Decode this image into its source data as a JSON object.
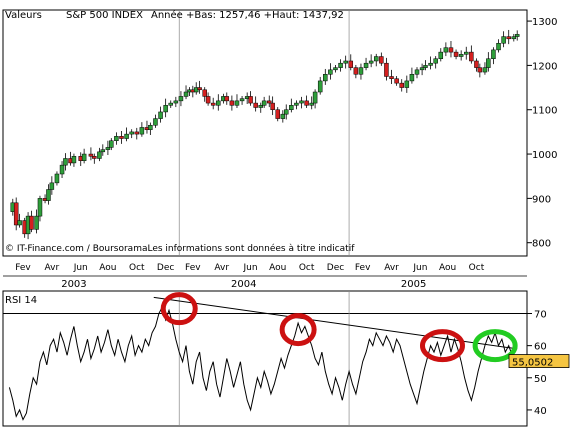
{
  "header": {
    "label": "Valeurs",
    "instrument": "S&P 500 INDEX",
    "stats": "Année +Bas: 1257,46 +Haut: 1437,92"
  },
  "copyright": "© IT-Finance.com / BoursoramaLes informations sont données à titre indicatif",
  "colors": {
    "up": "#2e9e3a",
    "down": "#d42020",
    "rsi_badge": "#f5c542",
    "circle_red": "#cc1111",
    "circle_green": "#22cc22"
  },
  "price_chart": {
    "type": "candlestick",
    "y_ticks": [
      800,
      900,
      1000,
      1100,
      1200,
      1300
    ],
    "ylim": [
      770,
      1325
    ],
    "points": [
      [
        2003.0,
        870
      ],
      [
        2003.02,
        890
      ],
      [
        2003.04,
        840
      ],
      [
        2003.06,
        850
      ],
      [
        2003.09,
        820
      ],
      [
        2003.11,
        860
      ],
      [
        2003.13,
        830
      ],
      [
        2003.16,
        860
      ],
      [
        2003.18,
        900
      ],
      [
        2003.21,
        895
      ],
      [
        2003.23,
        920
      ],
      [
        2003.25,
        935
      ],
      [
        2003.28,
        955
      ],
      [
        2003.31,
        975
      ],
      [
        2003.33,
        990
      ],
      [
        2003.36,
        980
      ],
      [
        2003.38,
        995
      ],
      [
        2003.42,
        985
      ],
      [
        2003.44,
        1000
      ],
      [
        2003.48,
        995
      ],
      [
        2003.5,
        990
      ],
      [
        2003.53,
        1005
      ],
      [
        2003.55,
        1010
      ],
      [
        2003.58,
        1015
      ],
      [
        2003.6,
        1030
      ],
      [
        2003.63,
        1040
      ],
      [
        2003.66,
        1035
      ],
      [
        2003.69,
        1045
      ],
      [
        2003.72,
        1050
      ],
      [
        2003.75,
        1045
      ],
      [
        2003.78,
        1060
      ],
      [
        2003.81,
        1055
      ],
      [
        2003.83,
        1065
      ],
      [
        2003.86,
        1080
      ],
      [
        2003.89,
        1095
      ],
      [
        2003.92,
        1110
      ],
      [
        2003.95,
        1115
      ],
      [
        2003.98,
        1120
      ],
      [
        2004.01,
        1130
      ],
      [
        2004.04,
        1140
      ],
      [
        2004.06,
        1145
      ],
      [
        2004.08,
        1140
      ],
      [
        2004.1,
        1150
      ],
      [
        2004.12,
        1145
      ],
      [
        2004.15,
        1130
      ],
      [
        2004.17,
        1115
      ],
      [
        2004.2,
        1110
      ],
      [
        2004.23,
        1120
      ],
      [
        2004.26,
        1130
      ],
      [
        2004.28,
        1120
      ],
      [
        2004.31,
        1110
      ],
      [
        2004.34,
        1120
      ],
      [
        2004.37,
        1125
      ],
      [
        2004.4,
        1130
      ],
      [
        2004.42,
        1115
      ],
      [
        2004.45,
        1105
      ],
      [
        2004.48,
        1110
      ],
      [
        2004.5,
        1120
      ],
      [
        2004.53,
        1115
      ],
      [
        2004.55,
        1100
      ],
      [
        2004.58,
        1080
      ],
      [
        2004.61,
        1090
      ],
      [
        2004.63,
        1100
      ],
      [
        2004.66,
        1110
      ],
      [
        2004.69,
        1115
      ],
      [
        2004.72,
        1120
      ],
      [
        2004.75,
        1110
      ],
      [
        2004.78,
        1115
      ],
      [
        2004.8,
        1140
      ],
      [
        2004.83,
        1165
      ],
      [
        2004.86,
        1180
      ],
      [
        2004.89,
        1190
      ],
      [
        2004.92,
        1195
      ],
      [
        2004.95,
        1205
      ],
      [
        2004.98,
        1210
      ],
      [
        2005.01,
        1195
      ],
      [
        2005.04,
        1180
      ],
      [
        2005.07,
        1195
      ],
      [
        2005.1,
        1205
      ],
      [
        2005.13,
        1210
      ],
      [
        2005.16,
        1220
      ],
      [
        2005.19,
        1205
      ],
      [
        2005.22,
        1175
      ],
      [
        2005.25,
        1170
      ],
      [
        2005.28,
        1160
      ],
      [
        2005.31,
        1150
      ],
      [
        2005.34,
        1165
      ],
      [
        2005.37,
        1180
      ],
      [
        2005.4,
        1190
      ],
      [
        2005.43,
        1195
      ],
      [
        2005.45,
        1200
      ],
      [
        2005.48,
        1205
      ],
      [
        2005.51,
        1215
      ],
      [
        2005.54,
        1230
      ],
      [
        2005.57,
        1240
      ],
      [
        2005.6,
        1230
      ],
      [
        2005.63,
        1220
      ],
      [
        2005.66,
        1225
      ],
      [
        2005.69,
        1230
      ],
      [
        2005.72,
        1210
      ],
      [
        2005.75,
        1195
      ],
      [
        2005.77,
        1185
      ],
      [
        2005.8,
        1195
      ],
      [
        2005.82,
        1215
      ],
      [
        2005.85,
        1235
      ],
      [
        2005.88,
        1250
      ],
      [
        2005.91,
        1265
      ],
      [
        2005.94,
        1260
      ],
      [
        2005.97,
        1265
      ],
      [
        2005.99,
        1270
      ]
    ]
  },
  "x_axis": {
    "months": [
      {
        "label": "Fev",
        "t": 2003.08
      },
      {
        "label": "Avr",
        "t": 2003.25
      },
      {
        "label": "Jun",
        "t": 2003.42
      },
      {
        "label": "Aou",
        "t": 2003.58
      },
      {
        "label": "Oct",
        "t": 2003.75
      },
      {
        "label": "Dec",
        "t": 2003.92
      },
      {
        "label": "Fev",
        "t": 2004.08
      },
      {
        "label": "Avr",
        "t": 2004.25
      },
      {
        "label": "Jun",
        "t": 2004.42
      },
      {
        "label": "Aou",
        "t": 2004.58
      },
      {
        "label": "Oct",
        "t": 2004.75
      },
      {
        "label": "Dec",
        "t": 2004.92
      },
      {
        "label": "Fev",
        "t": 2005.08
      },
      {
        "label": "Avr",
        "t": 2005.25
      },
      {
        "label": "Jun",
        "t": 2005.42
      },
      {
        "label": "Aou",
        "t": 2005.58
      },
      {
        "label": "Oct",
        "t": 2005.75
      }
    ],
    "years": [
      {
        "label": "2003",
        "t": 2003.38
      },
      {
        "label": "2004",
        "t": 2004.38
      },
      {
        "label": "2005",
        "t": 2005.38
      }
    ],
    "year_boundaries": [
      2004.0,
      2005.0
    ]
  },
  "rsi_chart": {
    "label": "RSI 14",
    "current_value": "55,0502",
    "y_ticks": [
      40,
      50,
      60,
      70
    ],
    "ylim": [
      35,
      77
    ],
    "overbought": 70,
    "points": [
      [
        2003.0,
        47
      ],
      [
        2003.02,
        43
      ],
      [
        2003.04,
        38
      ],
      [
        2003.06,
        40
      ],
      [
        2003.08,
        37
      ],
      [
        2003.1,
        39
      ],
      [
        2003.12,
        45
      ],
      [
        2003.14,
        50
      ],
      [
        2003.16,
        48
      ],
      [
        2003.18,
        55
      ],
      [
        2003.2,
        58
      ],
      [
        2003.22,
        54
      ],
      [
        2003.24,
        60
      ],
      [
        2003.26,
        62
      ],
      [
        2003.28,
        58
      ],
      [
        2003.3,
        64
      ],
      [
        2003.32,
        61
      ],
      [
        2003.34,
        57
      ],
      [
        2003.36,
        62
      ],
      [
        2003.38,
        66
      ],
      [
        2003.4,
        60
      ],
      [
        2003.42,
        55
      ],
      [
        2003.44,
        58
      ],
      [
        2003.46,
        62
      ],
      [
        2003.48,
        56
      ],
      [
        2003.5,
        59
      ],
      [
        2003.52,
        63
      ],
      [
        2003.54,
        58
      ],
      [
        2003.56,
        61
      ],
      [
        2003.58,
        65
      ],
      [
        2003.6,
        60
      ],
      [
        2003.62,
        57
      ],
      [
        2003.64,
        62
      ],
      [
        2003.66,
        58
      ],
      [
        2003.68,
        55
      ],
      [
        2003.7,
        60
      ],
      [
        2003.72,
        63
      ],
      [
        2003.74,
        57
      ],
      [
        2003.76,
        60
      ],
      [
        2003.78,
        58
      ],
      [
        2003.8,
        62
      ],
      [
        2003.82,
        60
      ],
      [
        2003.84,
        64
      ],
      [
        2003.86,
        66
      ],
      [
        2003.88,
        70
      ],
      [
        2003.9,
        72
      ],
      [
        2003.92,
        68
      ],
      [
        2003.94,
        71
      ],
      [
        2003.96,
        67
      ],
      [
        2003.98,
        62
      ],
      [
        2004.0,
        58
      ],
      [
        2004.02,
        55
      ],
      [
        2004.04,
        60
      ],
      [
        2004.06,
        52
      ],
      [
        2004.08,
        48
      ],
      [
        2004.1,
        55
      ],
      [
        2004.12,
        58
      ],
      [
        2004.14,
        50
      ],
      [
        2004.16,
        46
      ],
      [
        2004.18,
        52
      ],
      [
        2004.2,
        55
      ],
      [
        2004.22,
        48
      ],
      [
        2004.24,
        44
      ],
      [
        2004.26,
        50
      ],
      [
        2004.28,
        56
      ],
      [
        2004.3,
        52
      ],
      [
        2004.32,
        47
      ],
      [
        2004.34,
        51
      ],
      [
        2004.36,
        55
      ],
      [
        2004.38,
        48
      ],
      [
        2004.4,
        43
      ],
      [
        2004.42,
        40
      ],
      [
        2004.44,
        45
      ],
      [
        2004.46,
        50
      ],
      [
        2004.48,
        47
      ],
      [
        2004.5,
        52
      ],
      [
        2004.52,
        49
      ],
      [
        2004.54,
        45
      ],
      [
        2004.56,
        48
      ],
      [
        2004.58,
        52
      ],
      [
        2004.6,
        56
      ],
      [
        2004.62,
        53
      ],
      [
        2004.64,
        57
      ],
      [
        2004.66,
        60
      ],
      [
        2004.68,
        63
      ],
      [
        2004.7,
        67
      ],
      [
        2004.72,
        64
      ],
      [
        2004.74,
        66
      ],
      [
        2004.76,
        63
      ],
      [
        2004.78,
        60
      ],
      [
        2004.8,
        56
      ],
      [
        2004.82,
        54
      ],
      [
        2004.84,
        58
      ],
      [
        2004.86,
        52
      ],
      [
        2004.88,
        48
      ],
      [
        2004.9,
        45
      ],
      [
        2004.92,
        50
      ],
      [
        2004.94,
        47
      ],
      [
        2004.96,
        43
      ],
      [
        2004.98,
        48
      ],
      [
        2005.0,
        52
      ],
      [
        2005.02,
        48
      ],
      [
        2005.04,
        45
      ],
      [
        2005.06,
        50
      ],
      [
        2005.08,
        55
      ],
      [
        2005.1,
        58
      ],
      [
        2005.12,
        62
      ],
      [
        2005.14,
        60
      ],
      [
        2005.16,
        64
      ],
      [
        2005.18,
        62
      ],
      [
        2005.2,
        60
      ],
      [
        2005.22,
        63
      ],
      [
        2005.24,
        61
      ],
      [
        2005.26,
        58
      ],
      [
        2005.28,
        62
      ],
      [
        2005.3,
        60
      ],
      [
        2005.32,
        56
      ],
      [
        2005.34,
        52
      ],
      [
        2005.36,
        48
      ],
      [
        2005.38,
        45
      ],
      [
        2005.4,
        42
      ],
      [
        2005.42,
        47
      ],
      [
        2005.44,
        52
      ],
      [
        2005.46,
        56
      ],
      [
        2005.48,
        60
      ],
      [
        2005.5,
        58
      ],
      [
        2005.52,
        61
      ],
      [
        2005.54,
        57
      ],
      [
        2005.56,
        60
      ],
      [
        2005.58,
        63
      ],
      [
        2005.6,
        58
      ],
      [
        2005.62,
        62
      ],
      [
        2005.64,
        59
      ],
      [
        2005.66,
        55
      ],
      [
        2005.68,
        50
      ],
      [
        2005.7,
        46
      ],
      [
        2005.72,
        43
      ],
      [
        2005.74,
        47
      ],
      [
        2005.76,
        52
      ],
      [
        2005.78,
        56
      ],
      [
        2005.8,
        60
      ],
      [
        2005.82,
        63
      ],
      [
        2005.84,
        61
      ],
      [
        2005.86,
        64
      ],
      [
        2005.88,
        60
      ],
      [
        2005.9,
        62
      ],
      [
        2005.92,
        58
      ],
      [
        2005.94,
        60
      ],
      [
        2005.96,
        57
      ],
      [
        2005.98,
        55
      ]
    ],
    "trendline": [
      [
        2003.85,
        75
      ],
      [
        2005.99,
        59
      ]
    ],
    "highlights": [
      {
        "t": 2004.0,
        "v": 71.5,
        "color": "red"
      },
      {
        "t": 2004.7,
        "v": 65,
        "color": "red"
      },
      {
        "t": 2005.55,
        "v": 60,
        "color": "red"
      },
      {
        "t": 2005.86,
        "v": 60,
        "color": "green"
      }
    ]
  }
}
